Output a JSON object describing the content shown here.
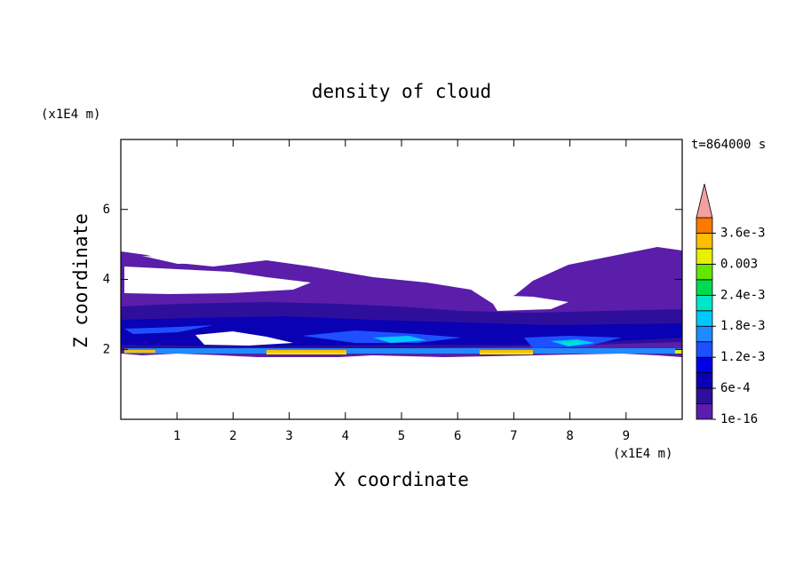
{
  "chart_data": {
    "type": "contour",
    "title": "density of cloud",
    "x_label": "X coordinate",
    "y_label": "Z coordinate",
    "x_unit": "(x1E4 m)",
    "y_unit": "(x1E4 m)",
    "time_label": "t=864000 s",
    "xlim": [
      0,
      10
    ],
    "ylim": [
      0,
      8
    ],
    "xticks": [
      1,
      2,
      3,
      4,
      5,
      6,
      7,
      8,
      9
    ],
    "yticks": [
      2,
      4,
      6
    ],
    "colorbar": {
      "clim": [
        1e-16,
        0.0039
      ],
      "levels": [
        1e-16,
        0.0003,
        0.0006,
        0.0009,
        0.0012,
        0.0015,
        0.0018,
        0.0021,
        0.0024,
        0.0027,
        0.003,
        0.0033,
        0.0036,
        0.0039
      ],
      "colors": [
        "#5a1eaa",
        "#2d0f9b",
        "#0a00b4",
        "#0000e6",
        "#1e50ff",
        "#1e8cff",
        "#00c8ff",
        "#00e6c8",
        "#00dc50",
        "#64e600",
        "#e6f000",
        "#ffbe00",
        "#ff7800"
      ],
      "extend_color": "#f4a0a0",
      "ticks": [
        {
          "value": 1e-16,
          "label": "1e-16"
        },
        {
          "value": 0.0006,
          "label": "6e-4"
        },
        {
          "value": 0.0012,
          "label": "1.2e-3"
        },
        {
          "value": 0.0018,
          "label": "1.8e-3"
        },
        {
          "value": 0.0024,
          "label": "2.4e-3"
        },
        {
          "value": 0.003,
          "label": "0.003"
        },
        {
          "value": 0.0036,
          "label": "3.6e-3"
        }
      ]
    }
  }
}
